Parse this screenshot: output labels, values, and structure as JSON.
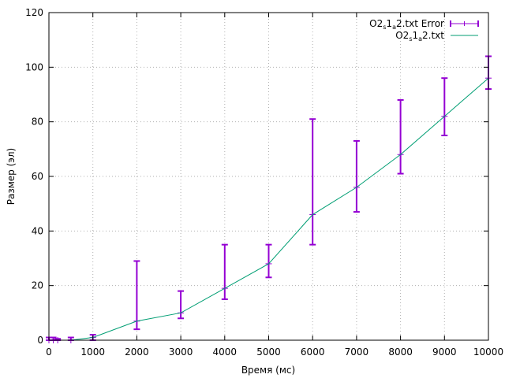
{
  "chart_data": {
    "type": "line",
    "title": "",
    "xlabel": "Время (мс)",
    "ylabel": "Размер (эл)",
    "xlim": [
      0,
      10000
    ],
    "ylim": [
      0,
      120
    ],
    "xticks": [
      0,
      1000,
      2000,
      3000,
      4000,
      5000,
      6000,
      7000,
      8000,
      9000,
      10000
    ],
    "yticks": [
      0,
      20,
      40,
      60,
      80,
      100,
      120
    ],
    "grid": true,
    "legend_position": "top-right",
    "x": [
      0,
      100,
      200,
      500,
      1000,
      2000,
      3000,
      4000,
      5000,
      6000,
      7000,
      8000,
      9000,
      10000
    ],
    "series": [
      {
        "name_parts": [
          "O2",
          "s",
          "1",
          "a",
          "2.txt Error"
        ],
        "kind": "errorbar",
        "color": "#9400d3",
        "y": [
          0,
          0,
          0,
          0,
          1,
          7,
          10,
          19,
          28,
          46,
          56,
          68,
          82,
          96
        ],
        "ylow": [
          0,
          0,
          0,
          0,
          0,
          4,
          8,
          15,
          23,
          35,
          47,
          61,
          75,
          92
        ],
        "yhigh": [
          1,
          1,
          0.5,
          1,
          2,
          29,
          18,
          35,
          35,
          81,
          73,
          88,
          96,
          104
        ]
      },
      {
        "name_parts": [
          "O2",
          "s",
          "1",
          "a",
          "2.txt"
        ],
        "kind": "line",
        "color": "#009e73",
        "y": [
          0,
          0,
          0,
          0,
          1,
          7,
          10,
          19,
          28,
          46,
          56,
          68,
          82,
          96
        ]
      }
    ]
  }
}
